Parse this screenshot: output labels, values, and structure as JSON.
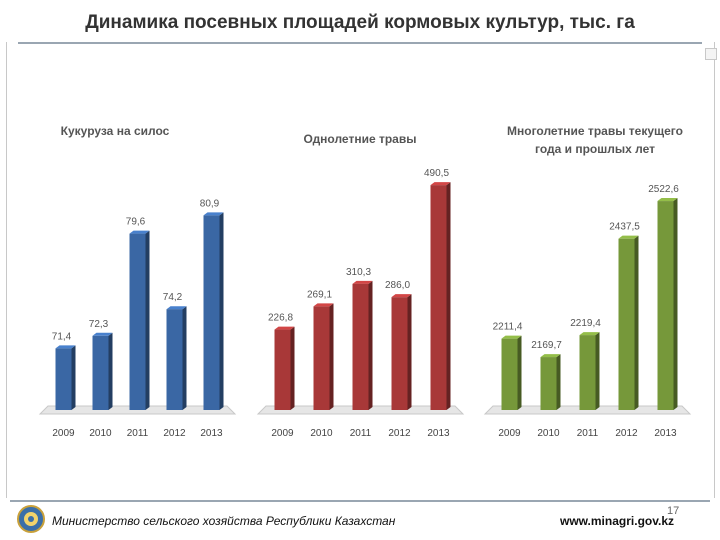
{
  "slide": {
    "title": "Динамика посевных площадей кормовых культур, тыс. га",
    "footer_left": "Министерство сельского хозяйства Республики Казахстан",
    "footer_right": "www.minagri.gov.kz",
    "page_number": "17"
  },
  "chart_data": [
    {
      "type": "bar",
      "title": "Кукуруза на силос",
      "categories": [
        "2009",
        "2010",
        "2011",
        "2012",
        "2013"
      ],
      "values": [
        71.4,
        72.3,
        79.6,
        74.2,
        80.9
      ],
      "value_labels": [
        "71,4",
        "72,3",
        "79,6",
        "74,2",
        "80,9"
      ],
      "ylim": [
        67,
        85
      ],
      "color": "#3a67a4"
    },
    {
      "type": "bar",
      "title": "Однолетние травы",
      "categories": [
        "2009",
        "2010",
        "2011",
        "2012",
        "2013"
      ],
      "values": [
        226.8,
        269.1,
        310.3,
        286.0,
        490.5
      ],
      "value_labels": [
        "226,8",
        "269,1",
        "310,3",
        "286,0",
        "490,5"
      ],
      "ylim": [
        80,
        540
      ],
      "color": "#a83838"
    },
    {
      "type": "bar",
      "title": "Многолетние травы текущего года и прошлых лет",
      "categories": [
        "2009",
        "2010",
        "2011",
        "2012",
        "2013"
      ],
      "values": [
        2211.4,
        2169.7,
        2219.4,
        2437.5,
        2522.6
      ],
      "value_labels": [
        "2211,4",
        "2169,7",
        "2219,4",
        "2437,5",
        "2522,6"
      ],
      "ylim": [
        2050,
        2620
      ],
      "color": "#76983a"
    }
  ]
}
